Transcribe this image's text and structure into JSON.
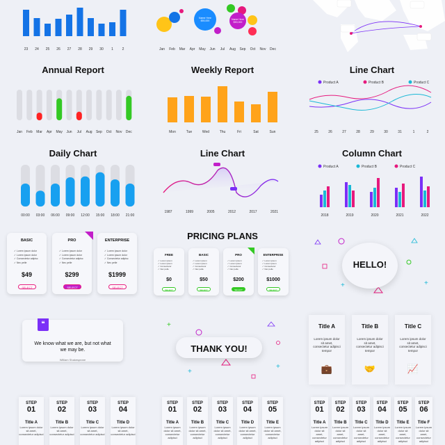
{
  "tiles": {
    "t1": {
      "ticks": [
        "23",
        "24",
        "25",
        "26",
        "27",
        "28",
        "29",
        "30",
        "1",
        "2"
      ]
    },
    "t2": {
      "months": [
        "Jan",
        "Feb",
        "Mar",
        "Apr",
        "May",
        "Jun",
        "Jul",
        "Aug",
        "Sep",
        "Oct",
        "Nov",
        "Dec"
      ],
      "bubble1": "Name Here",
      "bubble1_val": "$50,000",
      "bubble2": "Name Here",
      "bubble2_val": "$50,000"
    },
    "annual": {
      "title": "Annual Report",
      "months": [
        "Jan",
        "Feb",
        "Mar",
        "Apr",
        "May",
        "Jun",
        "Jul",
        "Aug",
        "Sep",
        "Oct",
        "Nov",
        "Dec"
      ]
    },
    "weekly": {
      "title": "Weekly Report",
      "days": [
        "Mon",
        "Tue",
        "Wed",
        "Thu",
        "Fri",
        "Sat",
        "Sun"
      ]
    },
    "line1": {
      "title": "Line Chart",
      "legend": [
        "Product A",
        "Product B",
        "Product C"
      ],
      "ticks": [
        "25",
        "26",
        "27",
        "28",
        "29",
        "30",
        "31",
        "1",
        "2"
      ]
    },
    "daily": {
      "title": "Daily Chart",
      "times": [
        "00:00",
        "03:00",
        "06:00",
        "09:00",
        "12:00",
        "15:00",
        "18:00",
        "21:00"
      ]
    },
    "line2": {
      "title": "Line Chart",
      "years": [
        "1987",
        "1999",
        "2005",
        "2012",
        "2017",
        "2021"
      ]
    },
    "column": {
      "title": "Column Chart",
      "legend": [
        "Product A",
        "Product B",
        "Product C"
      ],
      "years": [
        "2018",
        "2019",
        "2020",
        "2021",
        "2022"
      ]
    },
    "pricing3": {
      "plans": [
        {
          "name": "BASIC",
          "price": "$49",
          "btn": "SELECT"
        },
        {
          "name": "PRO",
          "price": "$299",
          "btn": "SELECT"
        },
        {
          "name": "ENTERPRISE",
          "price": "$1999",
          "btn": "SELECT"
        }
      ],
      "features": [
        "Lorem ipsum dolor",
        "Lorem ipsum dolor",
        "Consectetur adipisc",
        "Nec pelle"
      ]
    },
    "pricing4": {
      "title": "PRICING PLANS",
      "plans": [
        {
          "name": "FREE",
          "price": "$0",
          "btn": "SELECT"
        },
        {
          "name": "BASIC",
          "price": "$50",
          "btn": "SELECT"
        },
        {
          "name": "PRO",
          "price": "$200",
          "btn": "SELECT"
        },
        {
          "name": "ENTERPRISE",
          "price": "$1000",
          "btn": "SELECT"
        }
      ]
    },
    "hello": {
      "text": "HELLO!"
    },
    "quote": {
      "text": "We know what we are, but not what we may be.",
      "author": "William Shakespeare"
    },
    "thanks": {
      "text": "THANK YOU!"
    },
    "titles": {
      "items": [
        {
          "title": "Title A",
          "desc": "Lorem ipsum dolor sit amet, consectetur adipisci tempor"
        },
        {
          "title": "Title B",
          "desc": "Lorem ipsum dolor sit amet, consectetur adipisci tempor"
        },
        {
          "title": "Title C",
          "desc": "Lorem ipsum dolor sit amet, consectetur adipisci tempor"
        }
      ]
    },
    "steps4": {
      "label": "STEP",
      "items": [
        {
          "n": "01",
          "t": "Title A"
        },
        {
          "n": "02",
          "t": "Title B"
        },
        {
          "n": "03",
          "t": "Title C"
        },
        {
          "n": "04",
          "t": "Title D"
        }
      ]
    },
    "steps5": {
      "label": "STEP",
      "items": [
        {
          "n": "01",
          "t": "Title A"
        },
        {
          "n": "02",
          "t": "Title B"
        },
        {
          "n": "03",
          "t": "Title C"
        },
        {
          "n": "04",
          "t": "Title D"
        },
        {
          "n": "05",
          "t": "Title E"
        }
      ]
    },
    "steps6": {
      "label": "STEP",
      "items": [
        {
          "n": "01",
          "t": "Title A"
        },
        {
          "n": "02",
          "t": "Title B"
        },
        {
          "n": "03",
          "t": "Title C"
        },
        {
          "n": "04",
          "t": "Title D"
        },
        {
          "n": "05",
          "t": "Title E"
        },
        {
          "n": "06",
          "t": "Title F"
        }
      ]
    },
    "step_desc": "Lorem ipsum dolor sit amet, consectetur adipisci"
  },
  "colors": {
    "blue": "#1473e6",
    "orange": "#ffa31a",
    "red": "#ff2222",
    "green": "#34c924",
    "purple": "#7b2ff7",
    "pink": "#e6197d",
    "cyan": "#1ab8d6",
    "lightblue": "#18a0f0",
    "magenta": "#c21fc9"
  }
}
